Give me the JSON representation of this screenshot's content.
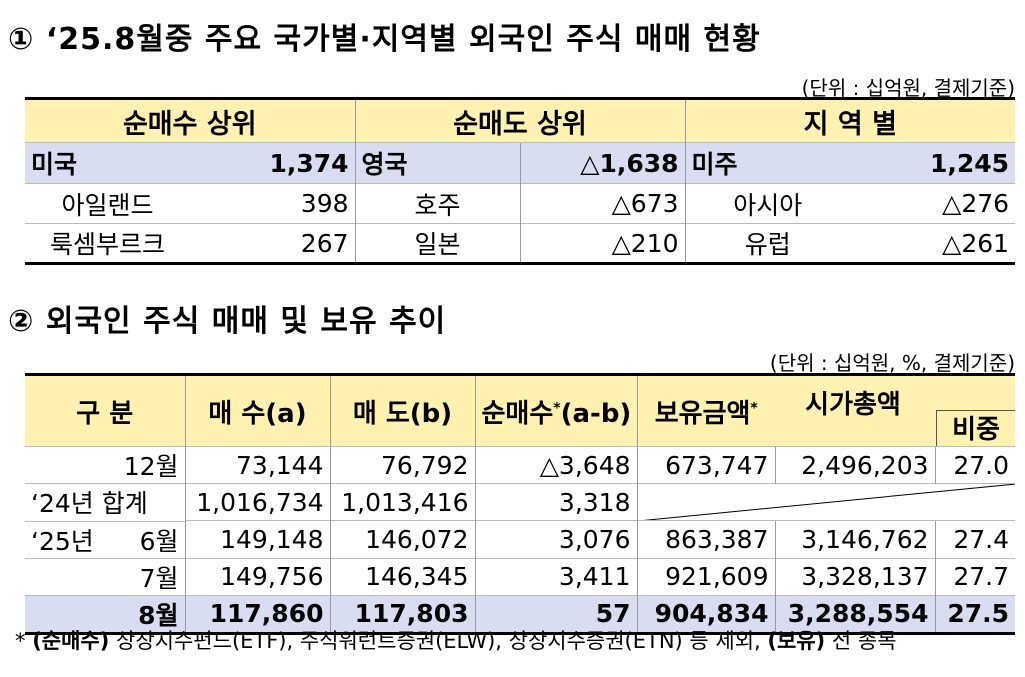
{
  "section1": {
    "title": "① ‘25.8월중 주요 국가별·지역별 외국인 주식 매매 현황",
    "unit": "(단위 : 십억원, 결제기준)",
    "headers": [
      "순매수 상위",
      "순매도 상위",
      "지 역 별"
    ],
    "rows": [
      {
        "buy_name": "미국",
        "buy_value": "1,374",
        "sell_name": "영국",
        "sell_value": "△1,638",
        "region_name": "미주",
        "region_value": "1,245"
      },
      {
        "buy_name": "아일랜드",
        "buy_value": "398",
        "sell_name": "호주",
        "sell_value": "△673",
        "region_name": "아시아",
        "region_value": "△276"
      },
      {
        "buy_name": "룩셈부르크",
        "buy_value": "267",
        "sell_name": "일본",
        "sell_value": "△210",
        "region_name": "유럽",
        "region_value": "△261"
      }
    ]
  },
  "section2": {
    "title": "② 외국인 주식 매매 및 보유 추이",
    "unit": "(단위 : 십억원, %, 결제기준)",
    "headers": {
      "category": "구 분",
      "buy": "매 수(a)",
      "sell": "매 도(b)",
      "net": "순매수",
      "net_sup": "*",
      "net_suffix": "(a-b)",
      "holding": "보유금액",
      "holding_sup": "*",
      "market_cap": "시가총액",
      "ratio": "비중"
    },
    "rows": [
      {
        "label_prefix": "",
        "label": "12월",
        "buy": "73,144",
        "sell": "76,792",
        "net": "△3,648",
        "holding": "673,747",
        "market_cap": "2,496,203",
        "ratio": "27.0"
      },
      {
        "label_prefix": "",
        "label": "‘24년 합계",
        "buy": "1,016,734",
        "sell": "1,013,416",
        "net": "3,318",
        "holding": "",
        "market_cap": "",
        "ratio": ""
      },
      {
        "label_prefix": "‘25년",
        "label": "6월",
        "buy": "149,148",
        "sell": "146,072",
        "net": "3,076",
        "holding": "863,387",
        "market_cap": "3,146,762",
        "ratio": "27.4"
      },
      {
        "label_prefix": "",
        "label": "7월",
        "buy": "149,756",
        "sell": "146,345",
        "net": "3,411",
        "holding": "921,609",
        "market_cap": "3,328,137",
        "ratio": "27.7"
      },
      {
        "label_prefix": "",
        "label": "8월",
        "buy": "117,860",
        "sell": "117,803",
        "net": "57",
        "holding": "904,834",
        "market_cap": "3,288,554",
        "ratio": "27.5"
      }
    ]
  },
  "footnote": {
    "star": "*",
    "part1": "(순매수)",
    "part2": " 상장지수펀드(ETF), 주식워런트증권(ELW), 상장지수증권(ETN) 등 제외, ",
    "part3": "(보유)",
    "part4": " 전 종목"
  }
}
